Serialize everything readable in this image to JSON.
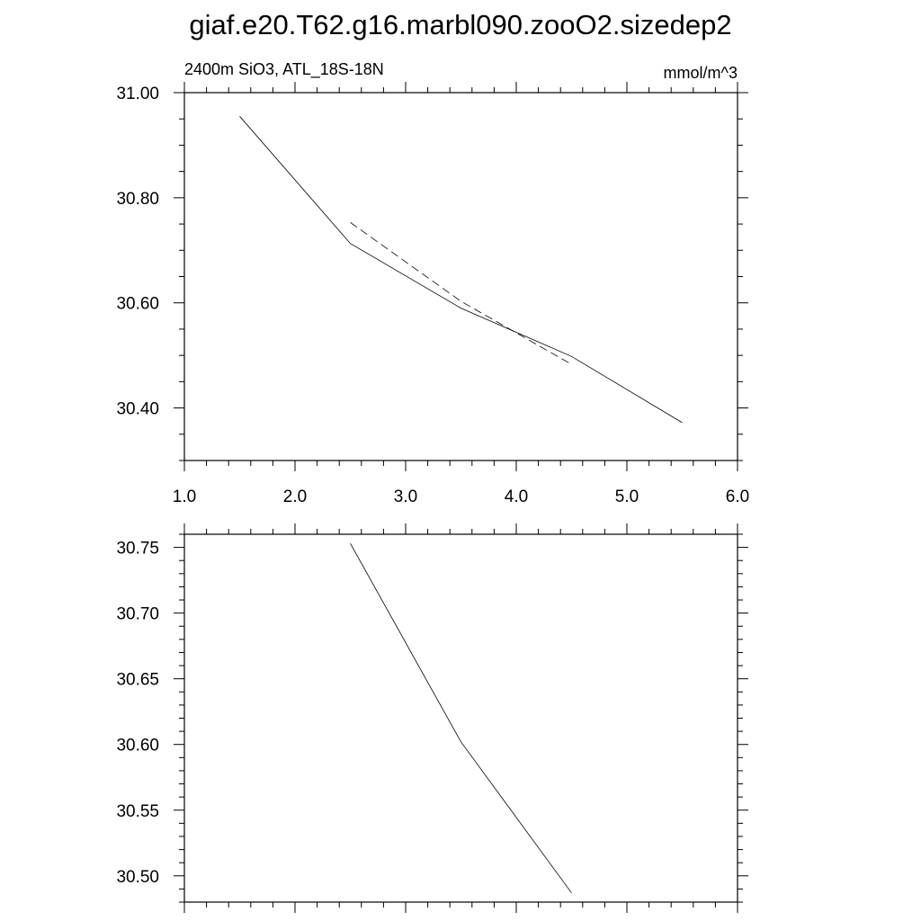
{
  "title": "giaf.e20.T62.g16.marbl090.zooO2.sizedep2",
  "chart_data": [
    {
      "type": "line",
      "left_string": "2400m SiO3, ATL_18S-18N",
      "right_string": "mmol/m^3",
      "xlim": [
        1.0,
        6.0
      ],
      "ylim": [
        30.3,
        31.0
      ],
      "x_ticks": [
        1.0,
        2.0,
        3.0,
        4.0,
        5.0,
        6.0
      ],
      "x_tick_labels": [
        "1.0",
        "2.0",
        "3.0",
        "4.0",
        "5.0",
        "6.0"
      ],
      "y_ticks": [
        30.4,
        30.6,
        30.8,
        31.0
      ],
      "y_tick_labels": [
        "30.40",
        "30.60",
        "30.80",
        "31.00"
      ],
      "grid": false,
      "series": [
        {
          "style": "solid",
          "x": [
            1.5,
            2.5,
            3.5,
            4.5,
            5.5
          ],
          "y": [
            30.955,
            30.713,
            30.59,
            30.498,
            30.372
          ]
        },
        {
          "style": "dashed",
          "x": [
            2.5,
            3.5,
            4.5
          ],
          "y": [
            30.753,
            30.603,
            30.483
          ]
        }
      ]
    },
    {
      "type": "line",
      "xlim": [
        1.0,
        6.0
      ],
      "ylim": [
        30.48,
        30.76
      ],
      "x_ticks": [
        1.0,
        2.0,
        3.0,
        4.0,
        5.0,
        6.0
      ],
      "y_ticks": [
        30.5,
        30.55,
        30.6,
        30.65,
        30.7,
        30.75
      ],
      "y_tick_labels": [
        "30.50",
        "30.55",
        "30.60",
        "30.65",
        "30.70",
        "30.75"
      ],
      "grid": false,
      "series": [
        {
          "style": "solid",
          "x": [
            2.5,
            3.5,
            4.5
          ],
          "y": [
            30.753,
            30.602,
            30.487
          ]
        }
      ]
    }
  ]
}
